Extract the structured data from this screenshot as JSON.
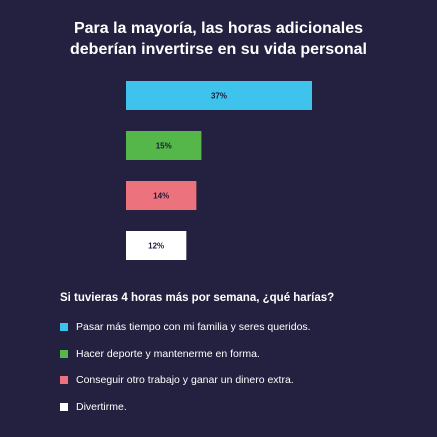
{
  "chart_data": {
    "type": "bar",
    "orientation": "horizontal",
    "title_lines": [
      "Para la mayoría, las horas adicionales",
      "deberían invertirse en su vida personal"
    ],
    "categories": [
      "Pasar más tiempo con mi familia y seres queridos.",
      "Hacer deporte y mantenerme en forma.",
      "Conseguir otro trabajo y ganar un dinero extra.",
      "Divertirme."
    ],
    "values": [
      37,
      15,
      14,
      12
    ],
    "data_labels": [
      "37%",
      "15%",
      "14%",
      "12%"
    ],
    "colors": [
      "#3ec3ed",
      "#55b74a",
      "#ec737d",
      "#ffffff"
    ],
    "label_colors": [
      "#1e1b3a",
      "#1e1b3a",
      "#1e1b3a",
      "#1e1b3a"
    ],
    "xlim": [
      0,
      37
    ],
    "grid": false,
    "legend_title": "Si tuvieras 4 horas más por semana, ¿qué harías?",
    "legend_position": "bottom-left"
  }
}
